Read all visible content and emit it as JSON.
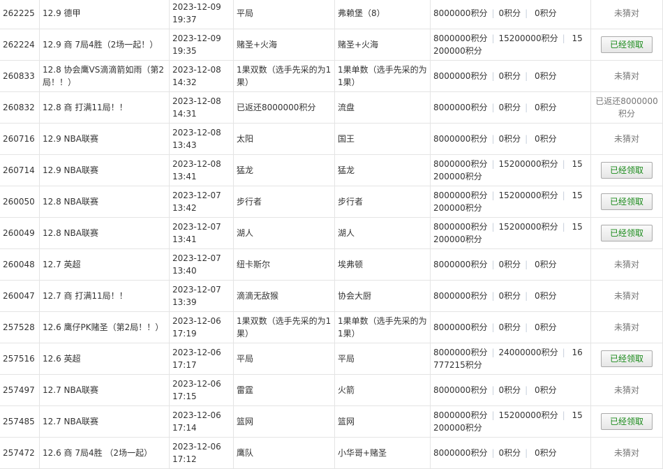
{
  "points_unit": "积分",
  "claim_button_label": "已经领取",
  "rows": [
    {
      "id": "262225",
      "match": "12.9 德甲",
      "date": "2023-12-09",
      "time": "19:37",
      "pick": "平局",
      "result": "弗赖堡（8）",
      "points": [
        "8000000积分",
        "0积分",
        "0积分"
      ],
      "status": "未猜对",
      "claimed": false
    },
    {
      "id": "262224",
      "match": "12.9 商 7局4胜（2场一起！）",
      "date": "2023-12-09",
      "time": "19:35",
      "pick": "赌圣+火海",
      "result": "赌圣+火海",
      "points": [
        "8000000积分",
        "15200000积分",
        "15200000积分"
      ],
      "status": "",
      "claimed": true
    },
    {
      "id": "260833",
      "match": "12.8 协会鹰VS滴滴箭如雨（第2局！！）",
      "date": "2023-12-08",
      "time": "14:32",
      "pick": "1果双数（选手先采的为1果）",
      "result": "1果单数（选手先采的为1果）",
      "points": [
        "8000000积分",
        "0积分",
        "0积分"
      ],
      "status": "未猜对",
      "claimed": false
    },
    {
      "id": "260832",
      "match": "12.8 商 打满11局！！",
      "date": "2023-12-08",
      "time": "14:31",
      "pick": "已返还8000000积分",
      "result": "流盘",
      "points": [
        "8000000积分",
        "0积分",
        "0积分"
      ],
      "status": "已返还8000000积分",
      "claimed": false
    },
    {
      "id": "260716",
      "match": "12.9 NBA联赛",
      "date": "2023-12-08",
      "time": "13:43",
      "pick": "太阳",
      "result": "国王",
      "points": [
        "8000000积分",
        "0积分",
        "0积分"
      ],
      "status": "未猜对",
      "claimed": false
    },
    {
      "id": "260714",
      "match": "12.9 NBA联赛",
      "date": "2023-12-08",
      "time": "13:41",
      "pick": "猛龙",
      "result": "猛龙",
      "points": [
        "8000000积分",
        "15200000积分",
        "15200000积分"
      ],
      "status": "",
      "claimed": true
    },
    {
      "id": "260050",
      "match": "12.8 NBA联赛",
      "date": "2023-12-07",
      "time": "13:42",
      "pick": "步行者",
      "result": "步行者",
      "points": [
        "8000000积分",
        "15200000积分",
        "15200000积分"
      ],
      "status": "",
      "claimed": true
    },
    {
      "id": "260049",
      "match": "12.8 NBA联赛",
      "date": "2023-12-07",
      "time": "13:41",
      "pick": "湖人",
      "result": "湖人",
      "points": [
        "8000000积分",
        "15200000积分",
        "15200000积分"
      ],
      "status": "",
      "claimed": true
    },
    {
      "id": "260048",
      "match": "12.7 英超",
      "date": "2023-12-07",
      "time": "13:40",
      "pick": "纽卡斯尔",
      "result": "埃弗顿",
      "points": [
        "8000000积分",
        "0积分",
        "0积分"
      ],
      "status": "未猜对",
      "claimed": false
    },
    {
      "id": "260047",
      "match": "12.7 商 打满11局！！",
      "date": "2023-12-07",
      "time": "13:39",
      "pick": "滴滴无敌猴",
      "result": "协会大厨",
      "points": [
        "8000000积分",
        "0积分",
        "0积分"
      ],
      "status": "未猜对",
      "claimed": false
    },
    {
      "id": "257528",
      "match": "12.6 鹰仔PK赌圣（第2局！！）",
      "date": "2023-12-06",
      "time": "17:19",
      "pick": "1果双数（选手先采的为1果）",
      "result": "1果单数（选手先采的为1果）",
      "points": [
        "8000000积分",
        "0积分",
        "0积分"
      ],
      "status": "未猜对",
      "claimed": false
    },
    {
      "id": "257516",
      "match": "12.6 英超",
      "date": "2023-12-06",
      "time": "17:17",
      "pick": "平局",
      "result": "平局",
      "points": [
        "8000000积分",
        "24000000积分",
        "16777215积分"
      ],
      "status": "",
      "claimed": true
    },
    {
      "id": "257497",
      "match": "12.7 NBA联赛",
      "date": "2023-12-06",
      "time": "17:15",
      "pick": "雷霆",
      "result": "火箭",
      "points": [
        "8000000积分",
        "0积分",
        "0积分"
      ],
      "status": "未猜对",
      "claimed": false
    },
    {
      "id": "257485",
      "match": "12.7 NBA联赛",
      "date": "2023-12-06",
      "time": "17:14",
      "pick": "篮网",
      "result": "篮网",
      "points": [
        "8000000积分",
        "15200000积分",
        "15200000积分"
      ],
      "status": "",
      "claimed": true
    },
    {
      "id": "257472",
      "match": "12.6 商 7局4胜 （2场一起）",
      "date": "2023-12-06",
      "time": "17:12",
      "pick": "鹰队",
      "result": "小华哥+赌圣",
      "points": [
        "8000000积分",
        "0积分",
        "0积分"
      ],
      "status": "未猜对",
      "claimed": false
    }
  ]
}
